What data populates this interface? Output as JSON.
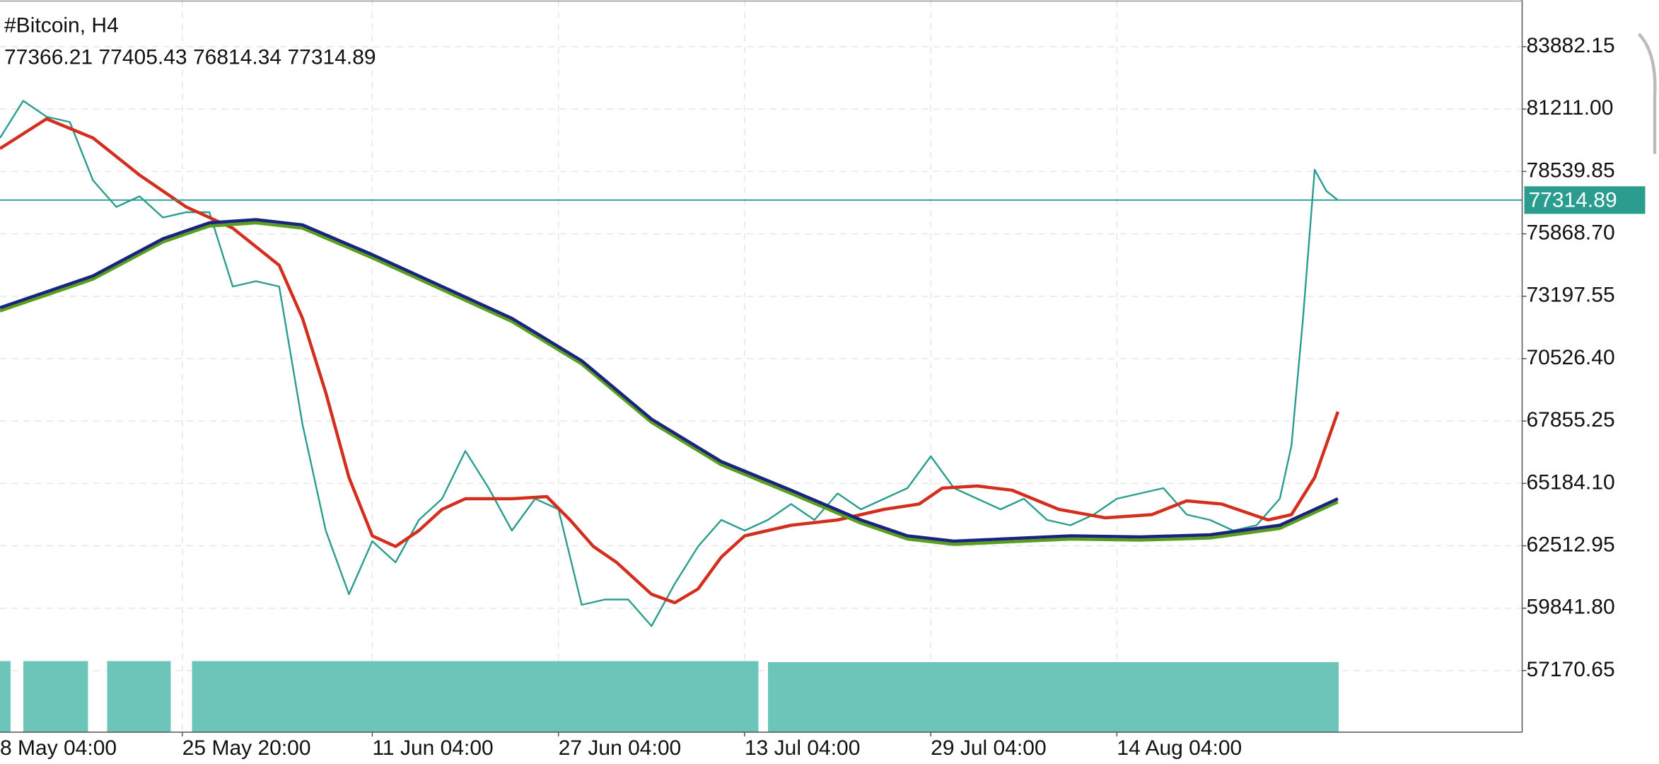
{
  "chart_data": {
    "type": "line",
    "title": "#Bitcoin, H4",
    "ohlc": [
      77366.21,
      77405.43,
      76814.34,
      77314.89
    ],
    "ylim": [
      54534,
      85881
    ],
    "yticks": [
      83882.15,
      {
        "value": 81211,
        "label": "81211.00"
      },
      78539.85,
      {
        "value": 75868.7,
        "label": "75868.70"
      },
      73197.55,
      {
        "value": 70526.4,
        "label": "70526.40"
      },
      67855.25,
      {
        "value": 65184.1,
        "label": "65184.10"
      },
      62512.95,
      {
        "value": 59841.8,
        "label": "59841.80"
      },
      57170.65
    ],
    "xlim": [
      "05-10 04:00",
      "09-18 00:00"
    ],
    "xticks": [
      {
        "value": "05-08 04:00",
        "label": "8 May 04:00"
      },
      {
        "value": "05-25 20:00",
        "label": "25 May 20:00"
      },
      {
        "value": "06-11 04:00",
        "label": "11 Jun 04:00"
      },
      {
        "value": "06-27 04:00",
        "label": "27 Jun 04:00"
      },
      {
        "value": "07-13 04:00",
        "label": "13 Jul 04:00"
      },
      {
        "value": "07-29 04:00",
        "label": "29 Jul 04:00"
      },
      {
        "value": "08-14 04:00",
        "label": "14 Aug 04:00"
      }
    ],
    "grid": true,
    "series": [
      {
        "color": "#2a9d8f",
        "x": [
          "05-10 04:00",
          "05-12 04:00",
          "05-14 04:00",
          "05-16 04:00",
          "05-18 04:00",
          "05-20 04:00",
          "05-22 04:00",
          "05-24 04:00",
          "05-26 04:00",
          "05-28 04:00",
          "05-30 04:00",
          "06-01 04:00",
          "06-03 04:00",
          "06-05 04:00",
          "06-07 04:00",
          "06-09 04:00",
          "06-11 04:00",
          "06-13 04:00",
          "06-15 04:00",
          "06-17 04:00",
          "06-19 04:00",
          "06-21 04:00",
          "06-23 04:00",
          "06-25 04:00",
          "06-27 04:00",
          "06-29 04:00",
          "07-01 04:00",
          "07-03 04:00",
          "07-05 04:00",
          "07-07 04:00",
          "07-09 04:00",
          "07-11 04:00",
          "07-13 04:00",
          "07-15 04:00",
          "07-17 04:00",
          "07-19 04:00",
          "07-21 04:00",
          "07-23 04:00",
          "07-25 04:00",
          "07-27 04:00",
          "07-29 04:00",
          "07-31 04:00",
          "08-02 04:00",
          "08-04 04:00",
          "08-06 04:00",
          "08-08 04:00",
          "08-10 04:00",
          "08-12 04:00",
          "08-14 04:00",
          "08-16 04:00",
          "08-18 04:00",
          "08-20 04:00",
          "08-22 04:00",
          "08-24 04:00",
          "08-26 04:00",
          "08-28 04:00",
          "08-29 04:00",
          "08-30 04:00",
          "08-31 04:00",
          "09-01 04:00",
          "09-02 04:00"
        ],
        "values": [
          79975,
          81565,
          80884,
          80657,
          78158,
          77022,
          77477,
          76568,
          76795,
          76795,
          73615,
          73842,
          73615,
          67709,
          63166,
          60440,
          62712,
          61803,
          63620,
          64529,
          66573,
          64983,
          63166,
          64529,
          64074,
          59986,
          60213,
          60213,
          59077,
          60894,
          62485,
          63620,
          63166,
          63620,
          64302,
          63620,
          64756,
          64074,
          64529,
          64983,
          66346,
          64983,
          64529,
          64074,
          64529,
          63620,
          63393,
          63847,
          64529,
          64756,
          64983,
          63847,
          63620,
          63166,
          63393,
          64529,
          66800,
          72252,
          78612,
          77704,
          77314.89
        ]
      },
      {
        "color": "#d32f1f",
        "x": [
          "05-10 04:00",
          "05-14 04:00",
          "05-18 04:00",
          "05-22 04:00",
          "05-26 04:00",
          "05-30 04:00",
          "06-03 04:00",
          "06-05 04:00",
          "06-07 04:00",
          "06-09 04:00",
          "06-11 04:00",
          "06-13 04:00",
          "06-15 04:00",
          "06-17 04:00",
          "06-19 04:00",
          "06-23 04:00",
          "06-26 04:00",
          "06-28 04:00",
          "06-30 04:00",
          "07-02 04:00",
          "07-05 04:00",
          "07-07 04:00",
          "07-09 04:00",
          "07-11 04:00",
          "07-13 04:00",
          "07-17 04:00",
          "07-21 04:00",
          "07-25 04:00",
          "07-28 04:00",
          "07-30 04:00",
          "08-02 04:00",
          "08-05 04:00",
          "08-09 04:00",
          "08-13 04:00",
          "08-17 04:00",
          "08-20 04:00",
          "08-23 04:00",
          "08-27 04:00",
          "08-29 04:00",
          "08-31 04:00",
          "09-02 04:00"
        ],
        "values": [
          79521,
          80793,
          79975,
          78385,
          77022,
          76113,
          74523,
          72252,
          69072,
          65437,
          62939,
          62485,
          63166,
          64074,
          64529,
          64529,
          64620,
          63620,
          62485,
          61803,
          60440,
          60077,
          60667,
          62030,
          62939,
          63393,
          63620,
          64074,
          64302,
          64983,
          65074,
          64892,
          64074,
          63711,
          63847,
          64438,
          64302,
          63620,
          63847,
          65437,
          68254
        ]
      },
      {
        "color": "#5a9e1e",
        "x": [
          "05-10 04:00",
          "05-18 04:00",
          "05-24 04:00",
          "05-28 04:00",
          "06-01 04:00",
          "06-05 04:00",
          "06-11 04:00",
          "06-17 04:00",
          "06-23 04:00",
          "06-29 04:00",
          "07-05 04:00",
          "07-11 04:00",
          "07-17 04:00",
          "07-23 04:00",
          "07-27 04:00",
          "07-31 04:00",
          "08-04 04:00",
          "08-10 04:00",
          "08-16 04:00",
          "08-22 04:00",
          "08-28 04:00",
          "09-02 04:00"
        ],
        "values": [
          72571,
          73933,
          75523,
          76204,
          76341,
          76114,
          74841,
          73479,
          72116,
          70299,
          67800,
          65983,
          64756,
          63484,
          62803,
          62576,
          62667,
          62803,
          62758,
          62849,
          63257,
          64393
        ]
      },
      {
        "color": "#1a237e",
        "x": [
          "05-10 04:00",
          "05-18 04:00",
          "05-24 04:00",
          "05-28 04:00",
          "06-01 04:00",
          "06-05 04:00",
          "06-11 04:00",
          "06-17 04:00",
          "06-23 04:00",
          "06-29 04:00",
          "07-05 04:00",
          "07-11 04:00",
          "07-17 04:00",
          "07-23 04:00",
          "07-27 04:00",
          "07-31 04:00",
          "08-04 04:00",
          "08-10 04:00",
          "08-16 04:00",
          "08-22 04:00",
          "08-28 04:00",
          "09-02 04:00"
        ],
        "values": [
          72707,
          74069,
          75659,
          76340,
          76477,
          76250,
          74977,
          73615,
          72252,
          70435,
          67936,
          66119,
          64892,
          63620,
          62939,
          62712,
          62803,
          62939,
          62894,
          62985,
          63393,
          64529
        ]
      }
    ]
  }
}
